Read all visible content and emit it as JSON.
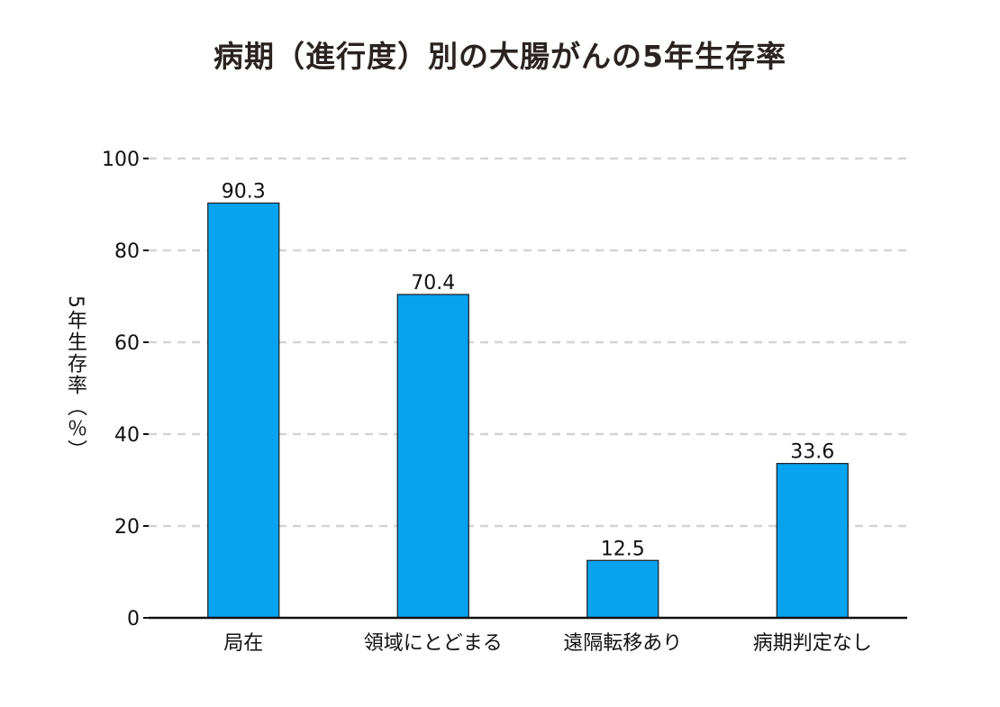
{
  "chart_data": {
    "type": "bar",
    "title": "病期（進行度）別の大腸がんの5年生存率",
    "xlabel": "",
    "ylabel": "5年生存率（％）",
    "categories": [
      "局在",
      "領域にとどまる",
      "遠隔転移あり",
      "病期判定なし"
    ],
    "values": [
      90.3,
      70.4,
      12.5,
      33.6
    ],
    "value_labels": [
      "90.3",
      "70.4",
      "12.5",
      "33.6"
    ],
    "ylim": [
      0,
      100
    ],
    "yticks": [
      0,
      20,
      40,
      60,
      80,
      100
    ],
    "grid": true,
    "grid_style": "dashed",
    "legend": "none",
    "colors": {
      "bar": "#08a3ef",
      "bar_edge": "#1a1a1a",
      "grid": "#d4d4d4",
      "axis": "#111111",
      "text": "#111111",
      "title": "#2a2320"
    }
  }
}
